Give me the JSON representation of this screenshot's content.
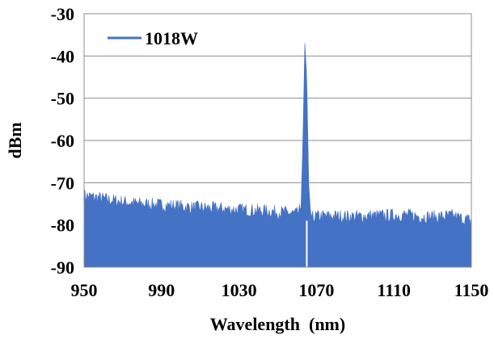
{
  "chart_data": {
    "type": "area",
    "title": "",
    "xlabel": "Wavelength  (nm)",
    "ylabel": "dBm",
    "xlim": [
      950,
      1150
    ],
    "ylim": [
      -90,
      -30
    ],
    "xticks": [
      950,
      990,
      1030,
      1070,
      1110,
      1150
    ],
    "yticks": [
      -30,
      -40,
      -50,
      -60,
      -70,
      -80,
      -90
    ],
    "x_tick_labels": [
      "950",
      "990",
      "1030",
      "1070",
      "1110",
      "1150"
    ],
    "y_tick_labels": [
      "-30",
      "-40",
      "-50",
      "-60",
      "-70",
      "-80",
      "-90"
    ],
    "grid": "horizontal",
    "legend_position": "top-left",
    "color": "#4472c4",
    "series": [
      {
        "name": "1018W",
        "x": [
          950,
          955,
          960,
          965,
          970,
          975,
          980,
          985,
          990,
          995,
          1000,
          1005,
          1010,
          1015,
          1020,
          1025,
          1030,
          1035,
          1040,
          1045,
          1050,
          1055,
          1060,
          1062,
          1063,
          1064,
          1065,
          1066,
          1067,
          1068,
          1070,
          1075,
          1080,
          1085,
          1090,
          1095,
          1100,
          1105,
          1110,
          1115,
          1120,
          1125,
          1130,
          1135,
          1140,
          1145,
          1150
        ],
        "y": [
          -73.0,
          -73.4,
          -73.8,
          -74.2,
          -74.5,
          -74.8,
          -75.0,
          -75.1,
          -75.3,
          -75.4,
          -75.6,
          -75.8,
          -75.9,
          -76.0,
          -76.1,
          -76.3,
          -76.4,
          -76.5,
          -76.6,
          -76.7,
          -76.9,
          -77.1,
          -77.4,
          -76.0,
          -60.0,
          -37.0,
          -45.0,
          -70.0,
          -77.5,
          -78.2,
          -78.0,
          -77.9,
          -77.9,
          -78.0,
          -78.0,
          -77.9,
          -77.8,
          -77.8,
          -77.7,
          -77.6,
          -77.8,
          -78.0,
          -78.1,
          -78.0,
          -77.8,
          -78.5,
          -79.0
        ]
      }
    ]
  }
}
